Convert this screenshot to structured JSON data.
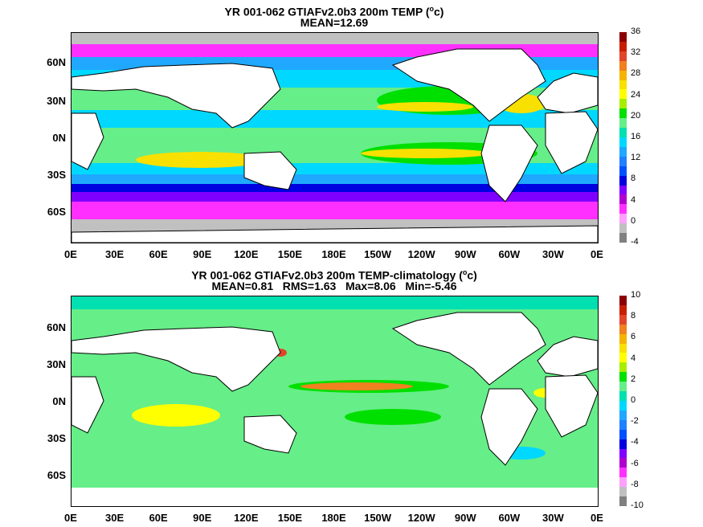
{
  "panels": [
    {
      "title_line1_prefix": "YR 001-062 GTIAFv2.0b3 200m TEMP (",
      "title_line1_sup": "o",
      "title_line1_suffix": "c)",
      "title_line2": "MEAN=12.69",
      "lat_labels": [
        "60N",
        "30N",
        "0N",
        "30S",
        "60S"
      ],
      "lon_labels": [
        "0E",
        "30E",
        "60E",
        "90E",
        "120E",
        "150E",
        "180E",
        "150W",
        "120W",
        "90W",
        "60W",
        "30W",
        "0E"
      ],
      "colorbar_ticks": [
        "36",
        "32",
        "28",
        "24",
        "20",
        "16",
        "12",
        "8",
        "4",
        "0",
        "-4"
      ],
      "colorbar_colors": [
        "#8b0000",
        "#c81e00",
        "#e0452a",
        "#f08020",
        "#f4b400",
        "#f8e000",
        "#ffff00",
        "#a8ee00",
        "#00e000",
        "#66ee88",
        "#00e0b0",
        "#00d8ff",
        "#20a8ff",
        "#2080ff",
        "#0050ff",
        "#0000e0",
        "#8000ff",
        "#b000d0",
        "#ff30ff",
        "#ffa0ff",
        "#c0c0c0",
        "#808080"
      ]
    },
    {
      "title_line1_prefix": "YR 001-062 GTIAFv2.0b3 200m TEMP-climatology (",
      "title_line1_sup": "o",
      "title_line1_suffix": "c)",
      "title_line2": "MEAN=0.81   RMS=1.63   Max=8.06   Min=-5.46",
      "lat_labels": [
        "60N",
        "30N",
        "0N",
        "30S",
        "60S"
      ],
      "lon_labels": [
        "0E",
        "30E",
        "60E",
        "90E",
        "120E",
        "150E",
        "180E",
        "150W",
        "120W",
        "90W",
        "60W",
        "30W",
        "0E"
      ],
      "colorbar_ticks": [
        "10",
        "8",
        "6",
        "4",
        "2",
        "0",
        "-2",
        "-4",
        "-6",
        "-8",
        "-10"
      ],
      "colorbar_colors": [
        "#8b0000",
        "#c81e00",
        "#e0452a",
        "#f08020",
        "#f4b400",
        "#f8e000",
        "#ffff00",
        "#a8ee00",
        "#00e000",
        "#66ee88",
        "#00e0b0",
        "#00d8ff",
        "#20a8ff",
        "#2080ff",
        "#0050ff",
        "#0000e0",
        "#8000ff",
        "#b000d0",
        "#ff30ff",
        "#ffa0ff",
        "#c0c0c0",
        "#808080"
      ]
    }
  ]
}
